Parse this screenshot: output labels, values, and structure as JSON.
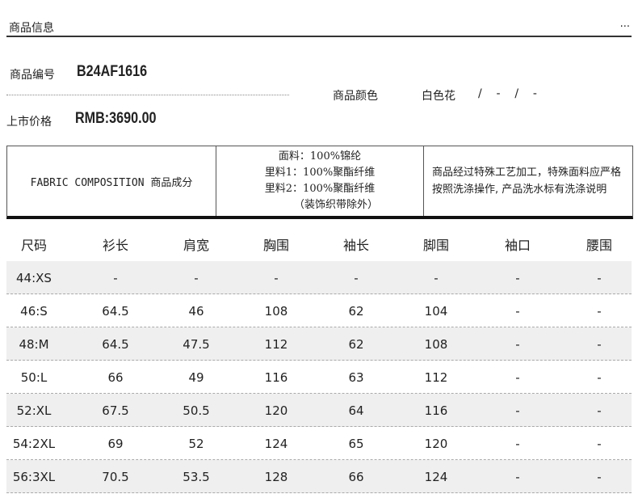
{
  "header": {
    "title": "商品信息",
    "more": "..."
  },
  "info": {
    "sku_label": "商品编号",
    "sku": "B24AF1616",
    "price_label": "上市价格",
    "price": "RMB:3690.00",
    "color_label": "商品颜色",
    "color_value": "白色花",
    "color_sep": "/    -    /    -"
  },
  "composition": {
    "label": "FABRIC COMPOSITION 商品成分",
    "lines": [
      "面料：100%锦纶",
      "里料1：100%聚酯纤维",
      "里料2：100%聚酯纤维",
      "（装饰织带除外）"
    ],
    "note": "商品经过特殊工艺加工，特殊面料应严格按照洗涤操作, 产品洗水标有洗涤说明"
  },
  "size_table": {
    "headers": [
      "尺码",
      "衫长",
      "肩宽",
      "胸围",
      "袖长",
      "脚围",
      "袖口",
      "腰围"
    ],
    "rows": [
      [
        "44:XS",
        "-",
        "-",
        "-",
        "-",
        "-",
        "-",
        "-"
      ],
      [
        "46:S",
        "64.5",
        "46",
        "108",
        "62",
        "104",
        "-",
        "-"
      ],
      [
        "48:M",
        "64.5",
        "47.5",
        "112",
        "62",
        "108",
        "-",
        "-"
      ],
      [
        "50:L",
        "66",
        "49",
        "116",
        "63",
        "112",
        "-",
        "-"
      ],
      [
        "52:XL",
        "67.5",
        "50.5",
        "120",
        "64",
        "116",
        "-",
        "-"
      ],
      [
        "54:2XL",
        "69",
        "52",
        "124",
        "65",
        "120",
        "-",
        "-"
      ],
      [
        "56:3XL",
        "70.5",
        "53.5",
        "128",
        "66",
        "124",
        "-",
        "-"
      ]
    ]
  }
}
